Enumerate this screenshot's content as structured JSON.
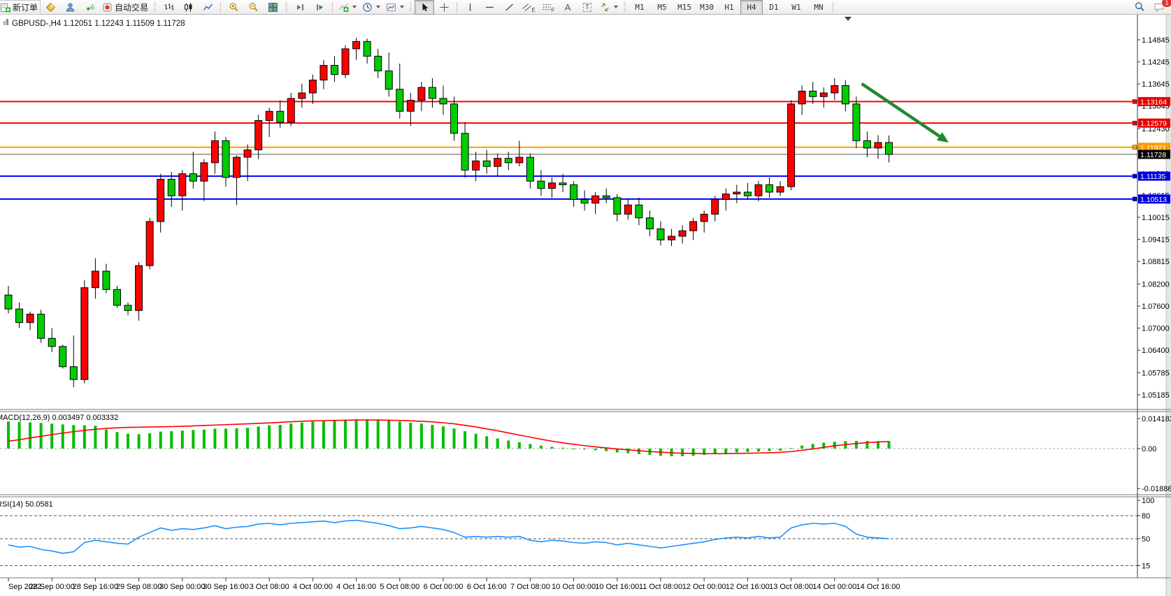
{
  "toolbar": {
    "new_order": "新订单",
    "autotrading": "自动交易",
    "glyph_a": "A",
    "glyph_t": "T",
    "glyph_e": "E",
    "glyph_f": "F",
    "timeframes": [
      "M1",
      "M5",
      "M15",
      "M30",
      "H1",
      "H4",
      "D1",
      "W1",
      "MN"
    ],
    "active_timeframe": "H4",
    "chat_badge": "1"
  },
  "symbol_bar": {
    "symbol": "GBPUSD-,H4",
    "ohlc": "1.12051 1.12243 1.11509 1.11728"
  },
  "chart_data": [
    {
      "type": "candlestick",
      "symbol": "GBPUSD-",
      "timeframe": "H4",
      "up_color": "#FF0000",
      "down_color": "#00CC00",
      "wick_color": "#000000",
      "ylim": [
        1.048,
        1.1516
      ],
      "price_ticks": [
        "1.14845",
        "1.14245",
        "1.13645",
        "1.13045",
        "1.12430",
        "1.11815",
        "1.11200",
        "1.10615",
        "1.10015",
        "1.09415",
        "1.08815",
        "1.08200",
        "1.07600",
        "1.07000",
        "1.06400",
        "1.05785",
        "1.05185"
      ],
      "time_labels": [
        "Sep 2022",
        "28 Sep 00:00",
        "28 Sep 16:00",
        "29 Sep 08:00",
        "30 Sep 00:00",
        "30 Sep 16:00",
        "3 Oct 08:00",
        "4 Oct 00:00",
        "4 Oct 16:00",
        "5 Oct 08:00",
        "6 Oct 00:00",
        "6 Oct 16:00",
        "7 Oct 08:00",
        "10 Oct 00:00",
        "10 Oct 16:00",
        "11 Oct 08:00",
        "12 Oct 00:00",
        "12 Oct 16:00",
        "13 Oct 08:00",
        "14 Oct 00:00",
        "14 Oct 16:00"
      ],
      "time_label_candle_index": [
        0,
        4,
        8,
        12,
        16,
        20,
        24,
        28,
        32,
        36,
        40,
        44,
        48,
        52,
        56,
        60,
        64,
        68,
        72,
        76,
        80
      ],
      "candles": [
        [
          1.079,
          1.0815,
          1.074,
          1.0752
        ],
        [
          1.0752,
          1.077,
          1.07,
          1.0715
        ],
        [
          1.0715,
          1.0745,
          1.0695,
          1.0738
        ],
        [
          1.0738,
          1.075,
          1.066,
          1.0672
        ],
        [
          1.0672,
          1.07,
          1.0635,
          1.065
        ],
        [
          1.065,
          1.0655,
          1.059,
          1.0595
        ],
        [
          1.0595,
          1.068,
          1.0539,
          1.056
        ],
        [
          1.056,
          1.083,
          1.055,
          1.081
        ],
        [
          1.081,
          1.089,
          1.078,
          1.0855
        ],
        [
          1.0855,
          1.0875,
          1.0795,
          1.0805
        ],
        [
          1.0805,
          1.0815,
          1.0755,
          1.0762
        ],
        [
          1.0762,
          1.077,
          1.0735,
          1.0748
        ],
        [
          1.0748,
          1.088,
          1.072,
          1.087
        ],
        [
          1.087,
          1.1,
          1.086,
          1.099
        ],
        [
          1.099,
          1.112,
          1.096,
          1.1105
        ],
        [
          1.1105,
          1.1125,
          1.103,
          1.106
        ],
        [
          1.106,
          1.113,
          1.102,
          1.112
        ],
        [
          1.112,
          1.118,
          1.108,
          1.11
        ],
        [
          1.11,
          1.116,
          1.1045,
          1.115
        ],
        [
          1.115,
          1.1235,
          1.112,
          1.121
        ],
        [
          1.121,
          1.122,
          1.1085,
          1.111
        ],
        [
          1.111,
          1.117,
          1.1035,
          1.1165
        ],
        [
          1.1165,
          1.12,
          1.11,
          1.1185
        ],
        [
          1.1185,
          1.128,
          1.116,
          1.1265
        ],
        [
          1.1265,
          1.13,
          1.122,
          1.129
        ],
        [
          1.129,
          1.132,
          1.1245,
          1.126
        ],
        [
          1.126,
          1.134,
          1.125,
          1.1325
        ],
        [
          1.1325,
          1.1365,
          1.13,
          1.134
        ],
        [
          1.134,
          1.139,
          1.131,
          1.1375
        ],
        [
          1.1375,
          1.143,
          1.135,
          1.1415
        ],
        [
          1.1415,
          1.144,
          1.137,
          1.139
        ],
        [
          1.139,
          1.147,
          1.138,
          1.146
        ],
        [
          1.146,
          1.149,
          1.143,
          1.148
        ],
        [
          1.148,
          1.1488,
          1.142,
          1.144
        ],
        [
          1.144,
          1.146,
          1.138,
          1.14
        ],
        [
          1.14,
          1.145,
          1.133,
          1.135
        ],
        [
          1.135,
          1.142,
          1.127,
          1.129
        ],
        [
          1.129,
          1.134,
          1.125,
          1.132
        ],
        [
          1.132,
          1.137,
          1.129,
          1.1355
        ],
        [
          1.1355,
          1.138,
          1.13,
          1.1325
        ],
        [
          1.1325,
          1.136,
          1.128,
          1.131
        ],
        [
          1.131,
          1.133,
          1.121,
          1.123
        ],
        [
          1.123,
          1.126,
          1.111,
          1.113
        ],
        [
          1.113,
          1.118,
          1.11,
          1.1155
        ],
        [
          1.1155,
          1.1185,
          1.112,
          1.114
        ],
        [
          1.114,
          1.1175,
          1.1115,
          1.1162
        ],
        [
          1.1162,
          1.118,
          1.113,
          1.115
        ],
        [
          1.115,
          1.121,
          1.114,
          1.1165
        ],
        [
          1.1165,
          1.1175,
          1.108,
          1.11
        ],
        [
          1.11,
          1.113,
          1.106,
          1.108
        ],
        [
          1.108,
          1.111,
          1.1055,
          1.1095
        ],
        [
          1.1095,
          1.112,
          1.107,
          1.109
        ],
        [
          1.109,
          1.11,
          1.103,
          1.105
        ],
        [
          1.105,
          1.1075,
          1.102,
          1.104
        ],
        [
          1.104,
          1.107,
          1.101,
          1.106
        ],
        [
          1.106,
          1.108,
          1.104,
          1.1055
        ],
        [
          1.1055,
          1.1065,
          1.099,
          1.101
        ],
        [
          1.101,
          1.105,
          1.0995,
          1.1035
        ],
        [
          1.1035,
          1.1055,
          1.098,
          1.1
        ],
        [
          1.1,
          1.102,
          1.095,
          1.097
        ],
        [
          1.097,
          1.099,
          1.0925,
          1.094
        ],
        [
          1.094,
          1.097,
          1.0923,
          1.095
        ],
        [
          1.095,
          1.098,
          1.093,
          1.0965
        ],
        [
          1.0965,
          1.1,
          1.094,
          1.099
        ],
        [
          1.099,
          1.102,
          1.096,
          1.101
        ],
        [
          1.101,
          1.106,
          1.099,
          1.105
        ],
        [
          1.105,
          1.108,
          1.102,
          1.1065
        ],
        [
          1.1065,
          1.109,
          1.104,
          1.107
        ],
        [
          1.107,
          1.1095,
          1.105,
          1.106
        ],
        [
          1.106,
          1.11,
          1.1045,
          1.109
        ],
        [
          1.109,
          1.111,
          1.1055,
          1.107
        ],
        [
          1.107,
          1.11,
          1.106,
          1.1085
        ],
        [
          1.1085,
          1.132,
          1.1075,
          1.131
        ],
        [
          1.131,
          1.136,
          1.128,
          1.1345
        ],
        [
          1.1345,
          1.137,
          1.131,
          1.133
        ],
        [
          1.133,
          1.1355,
          1.13,
          1.134
        ],
        [
          1.134,
          1.138,
          1.132,
          1.136
        ],
        [
          1.136,
          1.1375,
          1.129,
          1.131
        ],
        [
          1.131,
          1.133,
          1.119,
          1.121
        ],
        [
          1.121,
          1.1235,
          1.1165,
          1.119
        ],
        [
          1.119,
          1.1225,
          1.116,
          1.12051
        ],
        [
          1.12051,
          1.12243,
          1.11509,
          1.11728
        ]
      ],
      "hlines": [
        {
          "price": 1.13164,
          "color": "#FF0000",
          "width": 2,
          "badge": "1.13164",
          "badge_color": "#E60000"
        },
        {
          "price": 1.12579,
          "color": "#FF0000",
          "width": 2,
          "badge": "1.12579",
          "badge_color": "#E60000"
        },
        {
          "price": 1.11921,
          "color": "#FFA000",
          "width": 2,
          "badge": "1.11921",
          "badge_color": "#FF9C00"
        },
        {
          "price": 1.11728,
          "color": "#555555",
          "width": 1,
          "badge": "1.11728",
          "badge_color": "#000000",
          "role": "current-price"
        },
        {
          "price": 1.11135,
          "color": "#0000FF",
          "width": 2,
          "badge": "1.11135",
          "badge_color": "#0000DC"
        },
        {
          "price": 1.10513,
          "color": "#0000FF",
          "width": 2,
          "badge": "1.10513",
          "badge_color": "#0000DC"
        }
      ],
      "annotation_arrow": {
        "from_index": 78.5,
        "from_price": 1.1365,
        "to_index": 86.5,
        "to_price": 1.1205,
        "color": "#1E8B2E"
      }
    },
    {
      "type": "macd",
      "label": "MACD(12,26,9) 0.003497 0.003332",
      "params": "12,26,9",
      "macd_value": 0.003497,
      "signal_value": 0.003332,
      "axis_ticks": [
        "0.014183",
        "0.00",
        "-0.018869"
      ],
      "hist_color": "#00BE00",
      "signal_color": "#FF0000",
      "histogram": [
        0.0128,
        0.0126,
        0.0124,
        0.0121,
        0.0118,
        0.0114,
        0.0111,
        0.011,
        0.0108,
        0.009,
        0.0078,
        0.007,
        0.0068,
        0.0072,
        0.008,
        0.0082,
        0.0085,
        0.0088,
        0.009,
        0.0094,
        0.0094,
        0.0096,
        0.0098,
        0.0104,
        0.011,
        0.0112,
        0.0118,
        0.0123,
        0.0128,
        0.0132,
        0.0134,
        0.0136,
        0.0138,
        0.0138,
        0.0136,
        0.0133,
        0.0128,
        0.0122,
        0.0118,
        0.0112,
        0.0105,
        0.0095,
        0.0082,
        0.007,
        0.0058,
        0.0048,
        0.0038,
        0.003,
        0.0022,
        0.0014,
        0.0008,
        0.0004,
        0.0,
        -0.0004,
        -0.0008,
        -0.0012,
        -0.0018,
        -0.0022,
        -0.0026,
        -0.003,
        -0.0034,
        -0.0036,
        -0.0036,
        -0.0034,
        -0.003,
        -0.0026,
        -0.0022,
        -0.0018,
        -0.0016,
        -0.0014,
        -0.0012,
        -0.001,
        0.0002,
        0.0014,
        0.0022,
        0.0028,
        0.0032,
        0.0035,
        0.0036,
        0.0036,
        0.0035,
        0.003497
      ],
      "signal": [
        0.0035,
        0.0042,
        0.005,
        0.0058,
        0.0066,
        0.0073,
        0.008,
        0.0086,
        0.0091,
        0.0095,
        0.0098,
        0.01,
        0.0101,
        0.0102,
        0.0103,
        0.0104,
        0.0105,
        0.0107,
        0.0109,
        0.0111,
        0.0113,
        0.0115,
        0.0117,
        0.0119,
        0.0121,
        0.0124,
        0.0127,
        0.0129,
        0.0131,
        0.0132,
        0.0133,
        0.0134,
        0.0135,
        0.0135,
        0.0135,
        0.0134,
        0.0133,
        0.0131,
        0.0129,
        0.0126,
        0.0122,
        0.0117,
        0.011,
        0.0102,
        0.0093,
        0.0084,
        0.0074,
        0.0064,
        0.0054,
        0.0044,
        0.0035,
        0.0027,
        0.002,
        0.0014,
        0.0008,
        0.0003,
        -0.0002,
        -0.0006,
        -0.001,
        -0.0014,
        -0.0017,
        -0.002,
        -0.0022,
        -0.0023,
        -0.0024,
        -0.0024,
        -0.0024,
        -0.0023,
        -0.0022,
        -0.0021,
        -0.002,
        -0.0018,
        -0.0014,
        -0.0008,
        -0.0002,
        0.0006,
        0.0013,
        0.0019,
        0.0024,
        0.0028,
        0.0031,
        0.003332
      ]
    },
    {
      "type": "rsi",
      "label": "RSI(14) 50.0581",
      "period": 14,
      "value": 50.0581,
      "levels": [
        80,
        50,
        15
      ],
      "axis_ticks": [
        "100",
        "80",
        "50",
        "15"
      ],
      "line_color": "#1E90FF",
      "ylim": [
        0,
        100
      ],
      "values": [
        42,
        39,
        40,
        36,
        34,
        31,
        33,
        45,
        48,
        46,
        44,
        43,
        52,
        58,
        64,
        61,
        63,
        62,
        64,
        67,
        63,
        65,
        66,
        69,
        70,
        68,
        70,
        71,
        72,
        73,
        71,
        73,
        74,
        72,
        70,
        67,
        63,
        64,
        66,
        64,
        62,
        58,
        52,
        53,
        52,
        53,
        52,
        53,
        48,
        46,
        48,
        47,
        45,
        44,
        46,
        45,
        42,
        44,
        42,
        40,
        38,
        40,
        42,
        44,
        46,
        49,
        51,
        52,
        51,
        53,
        51,
        52,
        64,
        68,
        70,
        69,
        70,
        66,
        56,
        52,
        51,
        50.0581
      ]
    }
  ]
}
